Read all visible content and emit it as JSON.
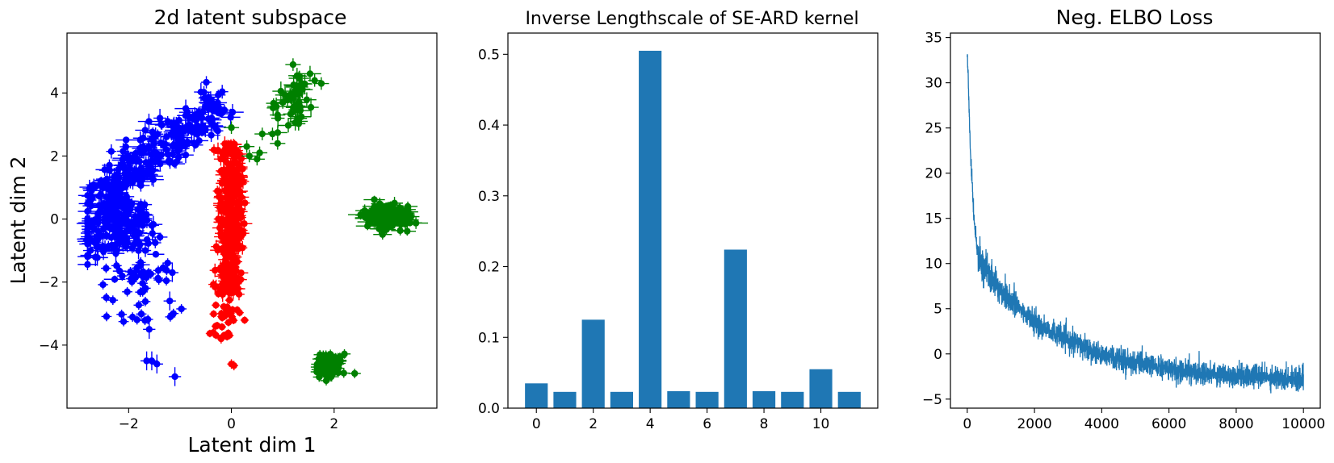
{
  "chart_data": [
    {
      "type": "scatter",
      "title": "2d latent subspace",
      "xlabel": "Latent dim 1",
      "ylabel": "Latent dim 2",
      "xlim": [
        -3.2,
        4.0
      ],
      "ylim": [
        -6.0,
        5.9
      ],
      "xticks": [
        -2,
        0,
        2
      ],
      "yticks": [
        -4,
        -2,
        0,
        2,
        4
      ],
      "error_bars": true,
      "clusters": [
        {
          "color": "#0000ff",
          "points_approx": 520,
          "center": [
            -1.4,
            0.6
          ],
          "extent_x": [
            -2.8,
            -0.2
          ],
          "extent_y": [
            -5.2,
            4.2
          ]
        },
        {
          "color": "#ff0000",
          "points_approx": 380,
          "center": [
            0.0,
            -0.6
          ],
          "extent_x": [
            -0.6,
            0.5
          ],
          "extent_y": [
            -4.8,
            2.7
          ]
        },
        {
          "color": "#008000",
          "points_approx": 90,
          "center": [
            1.1,
            3.0
          ],
          "extent_x": [
            0.2,
            2.2
          ],
          "extent_y": [
            1.9,
            5.0
          ]
        },
        {
          "color": "#008000",
          "points_approx": 200,
          "center": [
            3.0,
            0.0
          ],
          "extent_x": [
            2.6,
            3.5
          ],
          "extent_y": [
            -0.6,
            0.7
          ]
        },
        {
          "color": "#008000",
          "points_approx": 100,
          "center": [
            1.9,
            -4.7
          ],
          "extent_x": [
            1.5,
            2.3
          ],
          "extent_y": [
            -5.3,
            -4.1
          ]
        }
      ]
    },
    {
      "type": "bar",
      "title": "Inverse Lengthscale of SE-ARD kernel",
      "xlabel": "",
      "ylabel": "",
      "categories": [
        0,
        1,
        2,
        3,
        4,
        5,
        6,
        7,
        8,
        9,
        10,
        11
      ],
      "values": [
        0.035,
        0.023,
        0.125,
        0.023,
        0.505,
        0.024,
        0.023,
        0.224,
        0.024,
        0.023,
        0.055,
        0.023
      ],
      "xlim": [
        -1.0,
        12.0
      ],
      "ylim": [
        0.0,
        0.53
      ],
      "xticks": [
        0,
        2,
        4,
        6,
        8,
        10
      ],
      "yticks": [
        0.0,
        0.1,
        0.2,
        0.3,
        0.4,
        0.5
      ],
      "ytick_labels": [
        "0.0",
        "0.1",
        "0.2",
        "0.3",
        "0.4",
        "0.5"
      ],
      "color": "#1f77b4"
    },
    {
      "type": "line",
      "title": "Neg. ELBO Loss",
      "xlabel": "",
      "ylabel": "",
      "x_range": [
        0,
        10000
      ],
      "series": [
        {
          "values_summary": [
            [
              0,
              33.5
            ],
            [
              100,
              22.0
            ],
            [
              200,
              15.0
            ],
            [
              300,
              11.5
            ],
            [
              500,
              9.5
            ],
            [
              1000,
              7.0
            ],
            [
              2000,
              3.5
            ],
            [
              3000,
              1.5
            ],
            [
              4000,
              0.0
            ],
            [
              5000,
              -1.0
            ],
            [
              6000,
              -1.7
            ],
            [
              7000,
              -2.1
            ],
            [
              8000,
              -2.4
            ],
            [
              9000,
              -2.6
            ],
            [
              10000,
              -2.7
            ]
          ],
          "color": "#1f77b4"
        }
      ],
      "xlim": [
        -500,
        10500
      ],
      "ylim": [
        -6.0,
        35.5
      ],
      "xticks": [
        0,
        2000,
        4000,
        6000,
        8000,
        10000
      ],
      "yticks": [
        -5,
        0,
        5,
        10,
        15,
        20,
        25,
        30,
        35
      ]
    }
  ]
}
